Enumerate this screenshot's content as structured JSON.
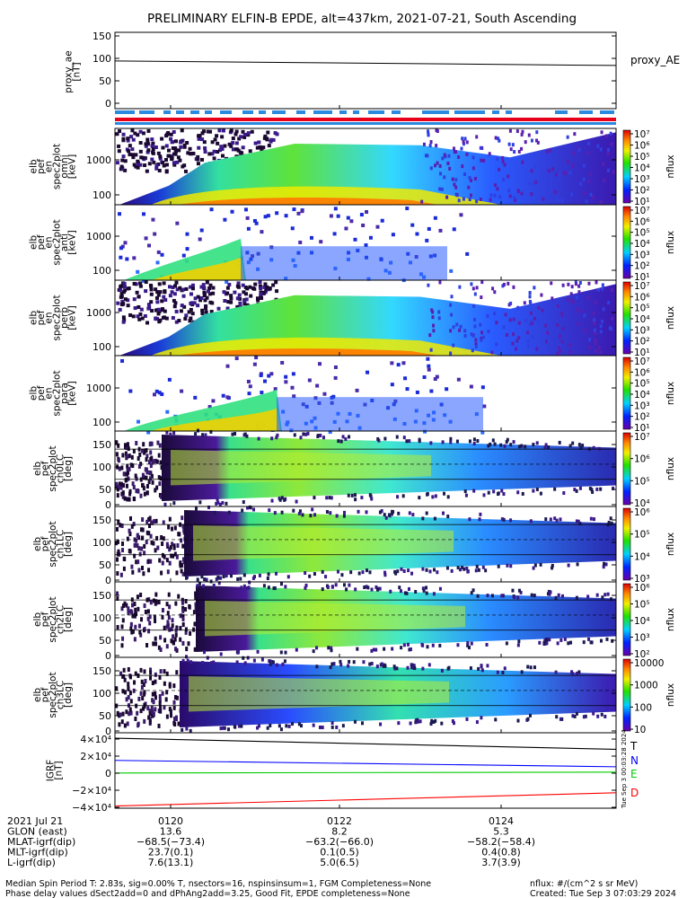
{
  "title": "PRELIMINARY ELFIN-B EPDE, alt=437km, 2021-07-21, South Ascending",
  "chart_data": [
    {
      "type": "line",
      "panel": "proxy_ae",
      "ylabel": [
        "proxy_ae",
        "[nT]"
      ],
      "legend": "proxy_AE",
      "ylim": [
        -5,
        155
      ],
      "yticks": [
        "150",
        "100",
        "50",
        "0"
      ],
      "x": [
        "01:19",
        "01:25:30"
      ],
      "series": [
        {
          "name": "proxy_AE",
          "color": "#000000",
          "values": [
            100,
            90
          ]
        }
      ]
    },
    {
      "type": "heatmap",
      "panel": "spectrogram-omni",
      "ylabel": [
        "elb",
        "pef",
        "en",
        "spec2plot",
        "omni",
        "[keV]"
      ],
      "yticks": [
        "1000",
        "100"
      ],
      "zlabel": "nflux",
      "zticks": [
        "10⁷",
        "10⁶",
        "10⁵",
        "10⁴",
        "10³",
        "10²",
        "10¹"
      ]
    },
    {
      "type": "heatmap",
      "panel": "spectrogram-anti",
      "ylabel": [
        "elb",
        "pef",
        "en",
        "spec2plot",
        "anti",
        "[keV]"
      ],
      "yticks": [
        "1000",
        "100"
      ],
      "zlabel": "nflux",
      "zticks": [
        "10⁷",
        "10⁶",
        "10⁵",
        "10⁴",
        "10³",
        "10²",
        "10¹"
      ]
    },
    {
      "type": "heatmap",
      "panel": "spectrogram-perp",
      "ylabel": [
        "elb",
        "pef",
        "en",
        "spec2plot",
        "perp",
        "[keV]"
      ],
      "yticks": [
        "1000",
        "100"
      ],
      "zlabel": "nflux",
      "zticks": [
        "10⁷",
        "10⁶",
        "10⁵",
        "10⁴",
        "10³",
        "10²",
        "10¹"
      ]
    },
    {
      "type": "heatmap",
      "panel": "spectrogram-para",
      "ylabel": [
        "elb",
        "pef",
        "en",
        "spec2plot",
        "para",
        "[keV]"
      ],
      "yticks": [
        "1000",
        "100"
      ],
      "zlabel": "nflux",
      "zticks": [
        "10⁷",
        "10⁶",
        "10⁵",
        "10⁴",
        "10³",
        "10²",
        "10¹"
      ]
    },
    {
      "type": "heatmap",
      "panel": "pitch-angle-ch0",
      "ylabel": [
        "elb",
        "pef",
        "spec2plot",
        "ch0LC",
        "[deg]"
      ],
      "yticks": [
        "150",
        "100",
        "50",
        "0"
      ],
      "zlabel": "nflux",
      "zticks": [
        "10⁷",
        "10⁶",
        "10⁵",
        "10⁴"
      ]
    },
    {
      "type": "heatmap",
      "panel": "pitch-angle-ch1",
      "ylabel": [
        "elb",
        "pef",
        "spec2plot",
        "ch1LC",
        "[deg]"
      ],
      "yticks": [
        "150",
        "100",
        "50",
        "0"
      ],
      "zlabel": "nflux",
      "zticks": [
        "10⁶",
        "10⁵",
        "10⁴",
        "10³"
      ]
    },
    {
      "type": "heatmap",
      "panel": "pitch-angle-ch2",
      "ylabel": [
        "elb",
        "pef",
        "spec2plot",
        "ch2LC",
        "[deg]"
      ],
      "yticks": [
        "150",
        "100",
        "50",
        "0"
      ],
      "zlabel": "nflux",
      "zticks": [
        "10⁶",
        "10⁵",
        "10⁴",
        "10³",
        "10²"
      ]
    },
    {
      "type": "heatmap",
      "panel": "pitch-angle-ch3",
      "ylabel": [
        "elb",
        "pef",
        "spec2plot",
        "ch3LC",
        "[deg]"
      ],
      "yticks": [
        "150",
        "100",
        "50",
        "0"
      ],
      "zlabel": "nflux",
      "zticks": [
        "10000",
        "1000",
        "100",
        "10"
      ]
    },
    {
      "type": "line",
      "panel": "igrf",
      "ylabel": [
        "IGRF",
        "[nT]"
      ],
      "ylim": [
        -45000,
        45000
      ],
      "yticks": [
        "4×10⁴",
        "2×10⁴",
        "0",
        "−2×10⁴",
        "−4×10⁴"
      ],
      "x": [
        "01:19",
        "01:25:30"
      ],
      "series": [
        {
          "name": "T",
          "color": "#000000",
          "values": [
            41000,
            28000
          ]
        },
        {
          "name": "N",
          "color": "#0000ff",
          "values": [
            15000,
            7500
          ]
        },
        {
          "name": "E",
          "color": "#00cc00",
          "values": [
            200,
            1200
          ]
        },
        {
          "name": "D",
          "color": "#ff0000",
          "values": [
            -38500,
            -23000
          ]
        }
      ]
    }
  ],
  "xaxis_rows": [
    [
      "2021 Jul 21",
      "0120",
      "0122",
      "0124"
    ],
    [
      "GLON (east)",
      "13.6",
      "8.2",
      "5.3"
    ],
    [
      "MLAT-igrf(dip)",
      "−68.5(−73.4)",
      "−63.2(−66.0)",
      "−58.2(−58.4)"
    ],
    [
      "MLT-igrf(dip)",
      "23.7(0.1)",
      "0.1(0.5)",
      "0.4(0.8)"
    ],
    [
      "L-igrf(dip)",
      "7.6(13.1)",
      "5.0(6.5)",
      "3.7(3.9)"
    ]
  ],
  "footer": {
    "line1": "Median Spin Period T: 2.83s, sig=0.00% T, nsectors=16, nspinsinsum=1, FGM Completeness=None",
    "line2": "Phase delay values dSect2add=0 and dPhAng2add=3.25, Good Fit, EPDE completeness=None",
    "units": "nflux: #/(cm^2 s sr MeV)",
    "created": "Created: Tue Sep  3 07:03:29 2024"
  },
  "side_stamp": "Tue Sep  3 00:03:28 2024"
}
